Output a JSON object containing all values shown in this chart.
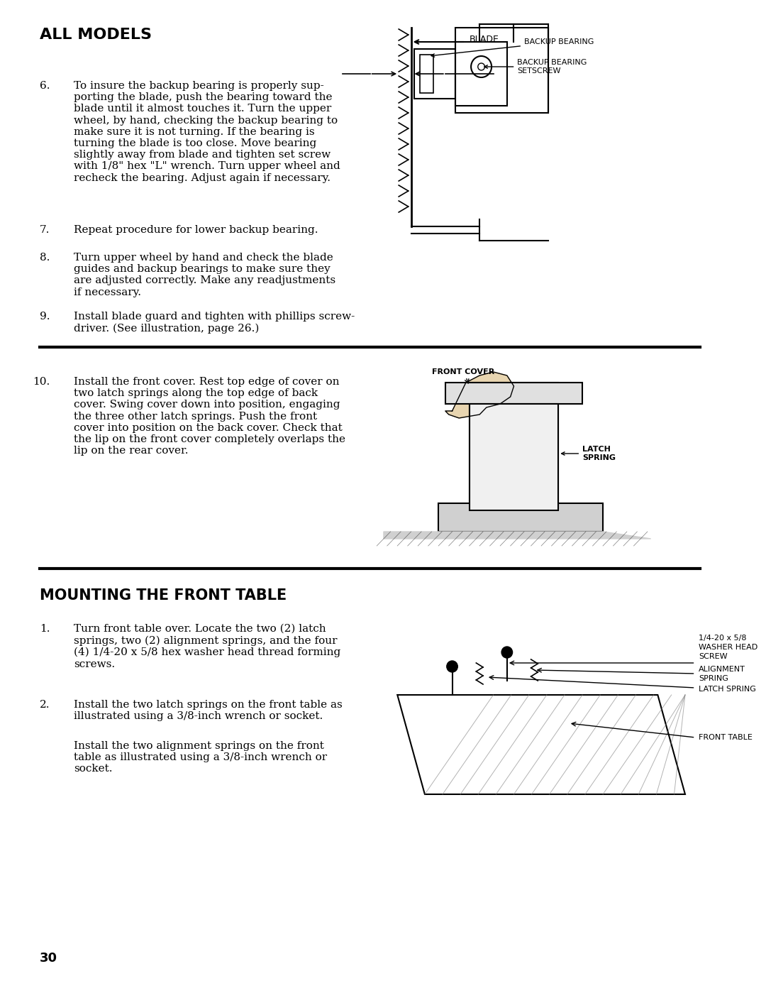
{
  "bg_color": "#ffffff",
  "page_number": "30",
  "section1_title": "ALL MODELS",
  "items": [
    {
      "num": "6.",
      "text": "To insure the backup bearing is properly sup-\nporting the blade, push the bearing toward the\nblade until it almost touches it. Turn the upper\nwheel, by hand, checking the backup bearing to\nmake sure it is not turning. If the bearing is\nturning the blade is too close. Move bearing\nslightly away from blade and tighten set screw\nwith 1/8\" hex \"L\" wrench. Turn upper wheel and\nrecheck the bearing. Adjust again if necessary."
    },
    {
      "num": "7.",
      "text": "Repeat procedure for lower backup bearing."
    },
    {
      "num": "8.",
      "text": "Turn upper wheel by hand and check the blade\nguides and backup bearings to make sure they\nare adjusted correctly. Make any readjustments\nif necessary."
    },
    {
      "num": "9.",
      "text": "Install blade guard and tighten with phillips screw-\ndriver. (See illustration, page 26.)"
    },
    {
      "num": "10.",
      "text": "Install the front cover. Rest top edge of cover on\ntwo latch springs along the top edge of back\ncover. Swing cover down into position, engaging\nthe three other latch springs. Push the front\ncover into position on the back cover. Check that\nthe lip on the front cover completely overlaps the\nlip on the rear cover."
    }
  ],
  "section2_title": "MOUNTING THE FRONT TABLE",
  "items2": [
    {
      "num": "1.",
      "text": "Turn front table over. Locate the two (2) latch\nsprings, two (2) alignment springs, and the four\n(4) 1/4-20 x 5/8 hex washer head thread forming\nscrews."
    },
    {
      "num": "2.",
      "text": "Install the two latch springs on the front table as\nillustrated using a 3/8-inch wrench or socket.\n\nInstall the two alignment springs on the front\ntable as illustrated using a 3/8-inch wrench or\nsocket."
    }
  ]
}
